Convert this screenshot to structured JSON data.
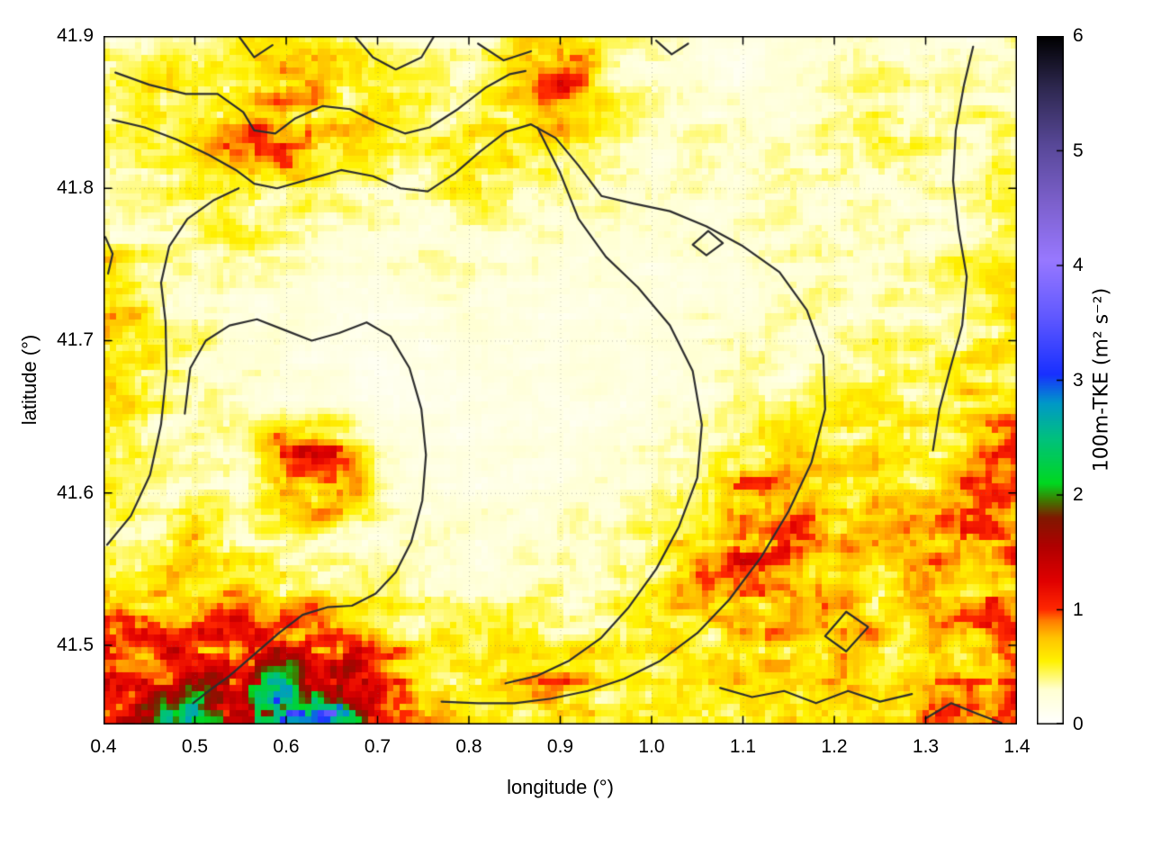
{
  "page": {
    "background": "#ffffff"
  },
  "chart_data": {
    "type": "heatmap",
    "title": "",
    "xlabel": "longitude (°)",
    "ylabel": "latitude (°)",
    "colorbar_label": "100m-TKE (m² s⁻²)",
    "x_range": [
      0.4,
      1.4
    ],
    "y_range": [
      41.448,
      41.9
    ],
    "colorbar_range": [
      0,
      6
    ],
    "x_ticks": [
      0.4,
      0.5,
      0.6,
      0.7,
      0.8,
      0.9,
      1.0,
      1.1,
      1.2,
      1.3,
      1.4
    ],
    "x_tick_labels": [
      "0.4",
      "0.5",
      "0.6",
      "0.7",
      "0.8",
      "0.9",
      "1.0",
      "1.1",
      "1.2",
      "1.3",
      "1.4"
    ],
    "y_ticks": [
      41.5,
      41.6,
      41.7,
      41.8,
      41.9
    ],
    "y_tick_labels": [
      "41.5",
      "41.6",
      "41.7",
      "41.8",
      "41.9"
    ],
    "cb_ticks": [
      0,
      1,
      2,
      3,
      4,
      5,
      6
    ],
    "cb_tick_labels": [
      "0",
      "1",
      "2",
      "3",
      "4",
      "5",
      "6"
    ],
    "grid": true,
    "grid_color": "rgba(110,110,110,0.45)",
    "palette_stops": [
      [
        0.0,
        "#ffffff"
      ],
      [
        0.3,
        "#ffffd2"
      ],
      [
        0.55,
        "#fff200"
      ],
      [
        0.75,
        "#ffc400"
      ],
      [
        0.9,
        "#ff7d00"
      ],
      [
        1.0,
        "#ff2800"
      ],
      [
        1.25,
        "#e00000"
      ],
      [
        1.55,
        "#b00000"
      ],
      [
        1.8,
        "#801800"
      ],
      [
        1.95,
        "#407800"
      ],
      [
        2.1,
        "#00d820"
      ],
      [
        2.5,
        "#00c080"
      ],
      [
        2.8,
        "#0098c8"
      ],
      [
        3.05,
        "#1830ff"
      ],
      [
        3.55,
        "#6058ff"
      ],
      [
        4.05,
        "#9878ff"
      ],
      [
        4.55,
        "#7c60cc"
      ],
      [
        5.05,
        "#584898"
      ],
      [
        5.55,
        "#2e2850"
      ],
      [
        6.0,
        "#000000"
      ]
    ],
    "field": {
      "lon": [
        0.4,
        0.45,
        0.5,
        0.55,
        0.6,
        0.65,
        0.7,
        0.75,
        0.8,
        0.85,
        0.9,
        0.95,
        1.0,
        1.05,
        1.1,
        1.15,
        1.2,
        1.25,
        1.3,
        1.35,
        1.4
      ],
      "lat": [
        41.9,
        41.87,
        41.84,
        41.81,
        41.78,
        41.75,
        41.72,
        41.69,
        41.66,
        41.63,
        41.6,
        41.57,
        41.54,
        41.51,
        41.48,
        41.45
      ],
      "values": [
        [
          0.3,
          0.3,
          0.25,
          0.4,
          0.5,
          0.45,
          0.3,
          0.25,
          0.3,
          0.5,
          0.8,
          0.4,
          0.3,
          0.2,
          0.2,
          0.2,
          0.25,
          0.3,
          0.3,
          0.25,
          0.3
        ],
        [
          0.5,
          0.6,
          0.45,
          0.6,
          0.75,
          0.6,
          0.5,
          0.4,
          0.35,
          0.6,
          1.0,
          0.5,
          0.3,
          0.25,
          0.2,
          0.25,
          0.3,
          0.35,
          0.3,
          0.3,
          0.35
        ],
        [
          0.4,
          0.5,
          0.6,
          0.8,
          0.9,
          0.7,
          0.5,
          0.45,
          0.5,
          0.6,
          0.7,
          0.4,
          0.3,
          0.3,
          0.3,
          0.3,
          0.4,
          0.6,
          0.4,
          0.35,
          0.4
        ],
        [
          0.35,
          0.4,
          0.45,
          0.6,
          0.8,
          0.5,
          0.45,
          0.4,
          0.65,
          0.45,
          0.4,
          0.35,
          0.3,
          0.3,
          0.3,
          0.3,
          0.35,
          0.4,
          0.35,
          0.3,
          0.45
        ],
        [
          0.3,
          0.3,
          0.35,
          0.5,
          0.4,
          0.35,
          0.3,
          0.3,
          0.35,
          0.3,
          0.3,
          0.3,
          0.25,
          0.25,
          0.25,
          0.3,
          0.3,
          0.3,
          0.3,
          0.35,
          0.5
        ],
        [
          0.6,
          0.4,
          0.3,
          0.3,
          0.3,
          0.25,
          0.25,
          0.25,
          0.3,
          0.25,
          0.25,
          0.25,
          0.2,
          0.25,
          0.25,
          0.3,
          0.3,
          0.3,
          0.35,
          0.4,
          0.45
        ],
        [
          0.8,
          0.5,
          0.3,
          0.25,
          0.25,
          0.2,
          0.2,
          0.2,
          0.25,
          0.2,
          0.2,
          0.2,
          0.2,
          0.25,
          0.25,
          0.3,
          0.3,
          0.35,
          0.3,
          0.45,
          0.6
        ],
        [
          0.7,
          0.5,
          0.35,
          0.25,
          0.2,
          0.2,
          0.15,
          0.15,
          0.2,
          0.2,
          0.15,
          0.2,
          0.2,
          0.25,
          0.3,
          0.3,
          0.3,
          0.4,
          0.35,
          0.5,
          0.55
        ],
        [
          0.6,
          0.45,
          0.35,
          0.3,
          0.2,
          0.15,
          0.15,
          0.15,
          0.15,
          0.2,
          0.2,
          0.2,
          0.25,
          0.3,
          0.3,
          0.35,
          0.4,
          0.5,
          0.45,
          0.6,
          0.7
        ],
        [
          0.5,
          0.4,
          0.35,
          0.3,
          1.0,
          0.9,
          0.3,
          0.2,
          0.15,
          0.2,
          0.2,
          0.25,
          0.3,
          0.4,
          0.5,
          0.6,
          0.5,
          0.6,
          0.5,
          0.7,
          0.9
        ],
        [
          0.45,
          0.4,
          0.35,
          0.3,
          0.8,
          1.0,
          0.35,
          0.25,
          0.2,
          0.2,
          0.25,
          0.3,
          0.35,
          0.5,
          0.9,
          0.8,
          0.6,
          0.7,
          0.6,
          0.8,
          1.0
        ],
        [
          0.5,
          0.45,
          0.9,
          0.4,
          0.35,
          0.3,
          0.3,
          0.25,
          0.25,
          0.25,
          0.3,
          0.35,
          0.4,
          0.7,
          1.0,
          0.9,
          0.7,
          0.6,
          0.7,
          0.9,
          0.8
        ],
        [
          0.7,
          0.6,
          0.5,
          0.6,
          0.5,
          0.4,
          0.4,
          0.35,
          0.3,
          0.3,
          0.35,
          0.4,
          0.5,
          0.8,
          0.9,
          0.8,
          0.7,
          0.6,
          0.8,
          0.7,
          0.9
        ],
        [
          1.0,
          0.9,
          1.0,
          1.1,
          1.0,
          0.8,
          0.5,
          0.45,
          0.4,
          0.5,
          0.4,
          0.45,
          0.5,
          0.7,
          0.8,
          0.7,
          0.8,
          0.7,
          0.6,
          0.8,
          1.0
        ],
        [
          1.1,
          1.2,
          1.3,
          1.5,
          2.0,
          1.6,
          1.2,
          0.6,
          0.5,
          0.6,
          0.9,
          0.5,
          0.45,
          0.6,
          0.6,
          0.6,
          0.7,
          0.6,
          0.7,
          0.9,
          1.1
        ],
        [
          1.2,
          1.5,
          2.2,
          1.8,
          3.2,
          2.6,
          1.4,
          0.8,
          0.5,
          0.5,
          0.6,
          0.5,
          0.5,
          0.5,
          0.5,
          0.6,
          0.6,
          0.7,
          0.8,
          0.9,
          1.0
        ]
      ]
    },
    "contours": {
      "color": "#2e2e2e",
      "polylines": [
        [
          [
            0.413,
            41.876
          ],
          [
            0.45,
            41.868
          ],
          [
            0.49,
            41.862
          ],
          [
            0.525,
            41.862
          ],
          [
            0.553,
            41.85
          ],
          [
            0.565,
            41.838
          ],
          [
            0.588,
            41.836
          ],
          [
            0.61,
            41.846
          ],
          [
            0.64,
            41.854
          ],
          [
            0.67,
            41.852
          ],
          [
            0.7,
            41.843
          ],
          [
            0.73,
            41.836
          ],
          [
            0.757,
            41.84
          ],
          [
            0.788,
            41.852
          ],
          [
            0.818,
            41.866
          ],
          [
            0.845,
            41.875
          ],
          [
            0.862,
            41.877
          ]
        ],
        [
          [
            0.41,
            41.845
          ],
          [
            0.445,
            41.84
          ],
          [
            0.48,
            41.832
          ],
          [
            0.515,
            41.822
          ],
          [
            0.545,
            41.812
          ],
          [
            0.565,
            41.803
          ],
          [
            0.59,
            41.8
          ],
          [
            0.625,
            41.806
          ],
          [
            0.66,
            41.812
          ],
          [
            0.695,
            41.808
          ],
          [
            0.725,
            41.8
          ],
          [
            0.755,
            41.798
          ],
          [
            0.785,
            41.81
          ],
          [
            0.812,
            41.824
          ],
          [
            0.84,
            41.837
          ],
          [
            0.868,
            41.842
          ],
          [
            0.895,
            41.833
          ],
          [
            0.92,
            41.815
          ],
          [
            0.945,
            41.795
          ],
          [
            0.98,
            41.79
          ],
          [
            1.02,
            41.785
          ],
          [
            1.06,
            41.775
          ],
          [
            1.1,
            41.762
          ],
          [
            1.14,
            41.745
          ],
          [
            1.17,
            41.72
          ],
          [
            1.188,
            41.69
          ],
          [
            1.19,
            41.655
          ],
          [
            1.175,
            41.62
          ],
          [
            1.15,
            41.588
          ],
          [
            1.12,
            41.558
          ],
          [
            1.085,
            41.53
          ],
          [
            1.05,
            41.508
          ],
          [
            1.01,
            41.49
          ],
          [
            0.97,
            41.478
          ],
          [
            0.93,
            41.47
          ],
          [
            0.89,
            41.465
          ],
          [
            0.85,
            41.462
          ],
          [
            0.81,
            41.462
          ],
          [
            0.77,
            41.463
          ]
        ],
        [
          [
            0.404,
            41.566
          ],
          [
            0.43,
            41.585
          ],
          [
            0.451,
            41.612
          ],
          [
            0.463,
            41.645
          ],
          [
            0.469,
            41.68
          ],
          [
            0.468,
            41.712
          ],
          [
            0.463,
            41.738
          ],
          [
            0.472,
            41.762
          ],
          [
            0.492,
            41.78
          ],
          [
            0.52,
            41.792
          ],
          [
            0.548,
            41.8
          ]
        ],
        [
          [
            0.489,
            41.652
          ],
          [
            0.495,
            41.682
          ],
          [
            0.512,
            41.7
          ],
          [
            0.538,
            41.71
          ],
          [
            0.568,
            41.714
          ],
          [
            0.598,
            41.707
          ],
          [
            0.628,
            41.7
          ],
          [
            0.658,
            41.705
          ],
          [
            0.688,
            41.712
          ],
          [
            0.714,
            41.703
          ],
          [
            0.735,
            41.682
          ],
          [
            0.748,
            41.655
          ],
          [
            0.753,
            41.625
          ],
          [
            0.749,
            41.595
          ],
          [
            0.737,
            41.568
          ],
          [
            0.72,
            41.548
          ],
          [
            0.698,
            41.534
          ],
          [
            0.672,
            41.526
          ],
          [
            0.645,
            41.525
          ],
          [
            0.618,
            41.52
          ],
          [
            0.592,
            41.508
          ],
          [
            0.565,
            41.494
          ],
          [
            0.538,
            41.48
          ],
          [
            0.515,
            41.47
          ],
          [
            0.498,
            41.462
          ]
        ],
        [
          [
            0.875,
            41.84
          ],
          [
            0.9,
            41.81
          ],
          [
            0.92,
            41.78
          ],
          [
            0.95,
            41.755
          ],
          [
            0.985,
            41.735
          ],
          [
            1.02,
            41.71
          ],
          [
            1.045,
            41.68
          ],
          [
            1.055,
            41.645
          ],
          [
            1.05,
            41.61
          ],
          [
            1.03,
            41.578
          ],
          [
            1.005,
            41.55
          ],
          [
            0.975,
            41.525
          ],
          [
            0.945,
            41.505
          ],
          [
            0.91,
            41.49
          ],
          [
            0.875,
            41.48
          ],
          [
            0.84,
            41.475
          ]
        ],
        [
          [
            1.045,
            41.763
          ],
          [
            1.062,
            41.772
          ],
          [
            1.078,
            41.764
          ],
          [
            1.06,
            41.756
          ],
          [
            1.045,
            41.763
          ]
        ],
        [
          [
            0.675,
            41.9
          ],
          [
            0.695,
            41.886
          ],
          [
            0.72,
            41.878
          ],
          [
            0.748,
            41.886
          ],
          [
            0.762,
            41.9
          ]
        ],
        [
          [
            0.81,
            41.895
          ],
          [
            0.838,
            41.884
          ],
          [
            0.868,
            41.89
          ]
        ],
        [
          [
            1.005,
            41.897
          ],
          [
            1.022,
            41.888
          ],
          [
            1.04,
            41.895
          ]
        ],
        [
          [
            1.352,
            41.893
          ],
          [
            1.342,
            41.868
          ],
          [
            1.333,
            41.838
          ],
          [
            1.33,
            41.805
          ],
          [
            1.336,
            41.773
          ],
          [
            1.345,
            41.742
          ],
          [
            1.34,
            41.71
          ],
          [
            1.327,
            41.682
          ],
          [
            1.315,
            41.655
          ],
          [
            1.308,
            41.628
          ]
        ],
        [
          [
            1.19,
            41.506
          ],
          [
            1.213,
            41.522
          ],
          [
            1.237,
            41.512
          ],
          [
            1.213,
            41.496
          ],
          [
            1.19,
            41.506
          ]
        ],
        [
          [
            1.075,
            41.472
          ],
          [
            1.11,
            41.466
          ],
          [
            1.145,
            41.47
          ],
          [
            1.18,
            41.462
          ],
          [
            1.215,
            41.47
          ],
          [
            1.25,
            41.463
          ],
          [
            1.285,
            41.468
          ]
        ],
        [
          [
            1.3,
            41.452
          ],
          [
            1.328,
            41.462
          ],
          [
            1.357,
            41.455
          ],
          [
            1.383,
            41.449
          ]
        ],
        [
          [
            0.402,
            41.768
          ],
          [
            0.41,
            41.757
          ],
          [
            0.405,
            41.744
          ]
        ],
        [
          [
            0.548,
            41.9
          ],
          [
            0.565,
            41.886
          ],
          [
            0.585,
            41.894
          ]
        ]
      ]
    }
  }
}
